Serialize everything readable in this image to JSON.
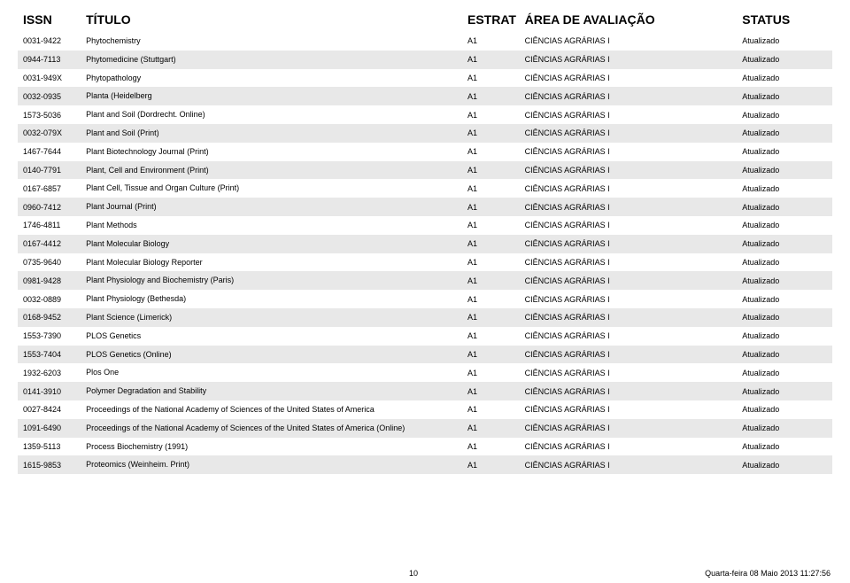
{
  "columns": {
    "issn": "ISSN",
    "title": "TÍTULO",
    "estrat": "ESTRAT",
    "area": "ÁREA DE AVALIAÇÃO",
    "status": "STATUS"
  },
  "rows": [
    {
      "issn": "0031-9422",
      "title": "Phytochemistry",
      "estrat": "A1",
      "area": "CIÊNCIAS AGRÁRIAS I",
      "status": "Atualizado"
    },
    {
      "issn": "0944-7113",
      "title": "Phytomedicine (Stuttgart)",
      "estrat": "A1",
      "area": "CIÊNCIAS AGRÁRIAS I",
      "status": "Atualizado"
    },
    {
      "issn": "0031-949X",
      "title": "Phytopathology",
      "estrat": "A1",
      "area": "CIÊNCIAS AGRÁRIAS I",
      "status": "Atualizado"
    },
    {
      "issn": "0032-0935",
      "title": "Planta (Heidelberg",
      "estrat": "A1",
      "area": "CIÊNCIAS AGRÁRIAS I",
      "status": "Atualizado"
    },
    {
      "issn": "1573-5036",
      "title": "Plant and Soil (Dordrecht. Online)",
      "estrat": "A1",
      "area": "CIÊNCIAS AGRÁRIAS I",
      "status": "Atualizado"
    },
    {
      "issn": "0032-079X",
      "title": "Plant and Soil (Print)",
      "estrat": "A1",
      "area": "CIÊNCIAS AGRÁRIAS I",
      "status": "Atualizado"
    },
    {
      "issn": "1467-7644",
      "title": "Plant Biotechnology Journal (Print)",
      "estrat": "A1",
      "area": "CIÊNCIAS AGRÁRIAS I",
      "status": "Atualizado"
    },
    {
      "issn": "0140-7791",
      "title": "Plant, Cell and Environment (Print)",
      "estrat": "A1",
      "area": "CIÊNCIAS AGRÁRIAS I",
      "status": "Atualizado"
    },
    {
      "issn": "0167-6857",
      "title": "Plant Cell, Tissue and Organ Culture (Print)",
      "estrat": "A1",
      "area": "CIÊNCIAS AGRÁRIAS I",
      "status": "Atualizado"
    },
    {
      "issn": "0960-7412",
      "title": "Plant Journal (Print)",
      "estrat": "A1",
      "area": "CIÊNCIAS AGRÁRIAS I",
      "status": "Atualizado"
    },
    {
      "issn": "1746-4811",
      "title": "Plant Methods",
      "estrat": "A1",
      "area": "CIÊNCIAS AGRÁRIAS I",
      "status": "Atualizado"
    },
    {
      "issn": "0167-4412",
      "title": "Plant Molecular Biology",
      "estrat": "A1",
      "area": "CIÊNCIAS AGRÁRIAS I",
      "status": "Atualizado"
    },
    {
      "issn": "0735-9640",
      "title": "Plant Molecular Biology Reporter",
      "estrat": "A1",
      "area": "CIÊNCIAS AGRÁRIAS I",
      "status": "Atualizado"
    },
    {
      "issn": "0981-9428",
      "title": "Plant Physiology and Biochemistry (Paris)",
      "estrat": "A1",
      "area": "CIÊNCIAS AGRÁRIAS I",
      "status": "Atualizado"
    },
    {
      "issn": "0032-0889",
      "title": "Plant Physiology (Bethesda)",
      "estrat": "A1",
      "area": "CIÊNCIAS AGRÁRIAS I",
      "status": "Atualizado"
    },
    {
      "issn": "0168-9452",
      "title": "Plant Science (Limerick)",
      "estrat": "A1",
      "area": "CIÊNCIAS AGRÁRIAS I",
      "status": "Atualizado"
    },
    {
      "issn": "1553-7390",
      "title": "PLOS Genetics",
      "estrat": "A1",
      "area": "CIÊNCIAS AGRÁRIAS I",
      "status": "Atualizado"
    },
    {
      "issn": "1553-7404",
      "title": "PLOS Genetics (Online)",
      "estrat": "A1",
      "area": "CIÊNCIAS AGRÁRIAS I",
      "status": "Atualizado"
    },
    {
      "issn": "1932-6203",
      "title": "Plos One",
      "estrat": "A1",
      "area": "CIÊNCIAS AGRÁRIAS I",
      "status": "Atualizado"
    },
    {
      "issn": "0141-3910",
      "title": "Polymer Degradation and Stability",
      "estrat": "A1",
      "area": "CIÊNCIAS AGRÁRIAS I",
      "status": "Atualizado"
    },
    {
      "issn": "0027-8424",
      "title": "Proceedings of the National Academy of Sciences of the United States of America",
      "estrat": "A1",
      "area": "CIÊNCIAS AGRÁRIAS I",
      "status": "Atualizado"
    },
    {
      "issn": "1091-6490",
      "title": "Proceedings of the National Academy of Sciences of the United States of America (Online)",
      "estrat": "A1",
      "area": "CIÊNCIAS AGRÁRIAS I",
      "status": "Atualizado"
    },
    {
      "issn": "1359-5113",
      "title": "Process Biochemistry (1991)",
      "estrat": "A1",
      "area": "CIÊNCIAS AGRÁRIAS I",
      "status": "Atualizado"
    },
    {
      "issn": "1615-9853",
      "title": "Proteomics (Weinheim. Print)",
      "estrat": "A1",
      "area": "CIÊNCIAS AGRÁRIAS I",
      "status": "Atualizado"
    }
  ],
  "footer": {
    "page": "10",
    "date": "Quarta-feira 08 Maio 2013 11:27:56"
  },
  "style": {
    "header_fontsize": 14,
    "cell_fontsize": 9,
    "row_even_bg": "#e8e8e8",
    "row_odd_bg": "#ffffff",
    "text_color": "#000000",
    "background": "#ffffff"
  }
}
